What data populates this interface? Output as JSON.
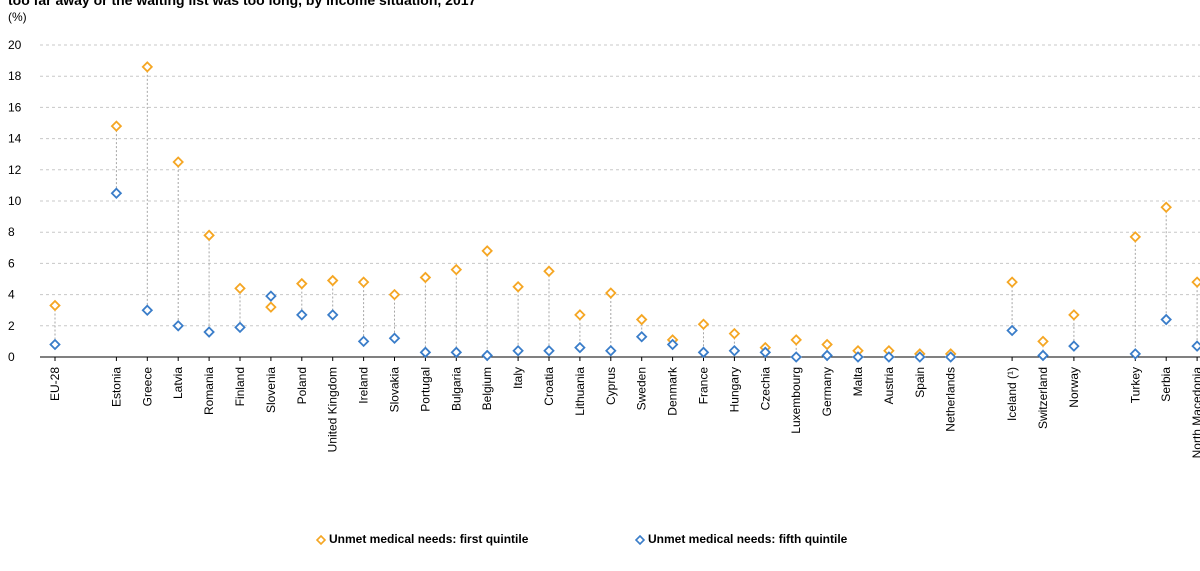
{
  "title": "too far away or the waiting list was too long, by income situation, 2017",
  "unit_label": "(%)",
  "chart_data": {
    "type": "scatter",
    "y_ticks": [
      "0",
      "2",
      "4",
      "6",
      "8",
      "10",
      "12",
      "14",
      "16",
      "18",
      "20"
    ],
    "ylim": [
      0,
      20
    ],
    "grid": true,
    "legend_position": "bottom",
    "categories": [
      "EU-28",
      "Estonia",
      "Greece",
      "Latvia",
      "Romania",
      "Finland",
      "Slovenia",
      "Poland",
      "United Kingdom",
      "Ireland",
      "Slovakia",
      "Portugal",
      "Bulgaria",
      "Belgium",
      "Italy",
      "Croatia",
      "Lithuania",
      "Cyprus",
      "Sweden",
      "Denmark",
      "France",
      "Hungary",
      "Czechia",
      "Luxembourg",
      "Germany",
      "Malta",
      "Austria",
      "Spain",
      "Netherlands",
      "Iceland (¹)",
      "Switzerland",
      "Norway",
      "Turkey",
      "Serbia",
      "North Macedonia"
    ],
    "series": [
      {
        "name": "Unmet medical needs: first quintile",
        "color": "#f5a623",
        "values": [
          3.3,
          14.8,
          18.6,
          12.5,
          7.8,
          4.4,
          3.2,
          4.7,
          4.9,
          4.8,
          4.0,
          5.1,
          5.6,
          6.8,
          4.5,
          5.5,
          2.7,
          4.1,
          2.4,
          1.1,
          2.1,
          1.5,
          0.6,
          1.1,
          0.8,
          0.4,
          0.4,
          0.2,
          0.2,
          4.8,
          1.0,
          2.7,
          7.7,
          9.6,
          4.8
        ]
      },
      {
        "name": "Unmet medical needs: fifth quintile",
        "color": "#3a7dc9",
        "values": [
          0.8,
          10.5,
          3.0,
          2.0,
          1.6,
          1.9,
          3.9,
          2.7,
          2.7,
          1.0,
          1.2,
          0.3,
          0.3,
          0.1,
          0.4,
          0.4,
          0.6,
          0.4,
          1.3,
          0.8,
          0.3,
          0.4,
          0.3,
          0.0,
          0.1,
          0.0,
          0.0,
          0.0,
          0.0,
          1.7,
          0.1,
          0.7,
          0.2,
          2.4,
          0.7
        ]
      }
    ]
  }
}
